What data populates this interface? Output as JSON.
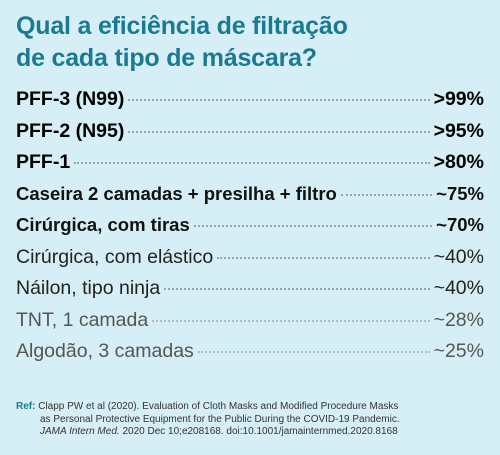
{
  "title": {
    "line1": "Qual a eficiência de filtração",
    "line2": "de cada tipo de máscara?"
  },
  "rows": [
    {
      "label": "PFF-3 (N99)",
      "value": ">99%"
    },
    {
      "label": "PFF-2 (N95)",
      "value": ">95%"
    },
    {
      "label": "PFF-1",
      "value": ">80%"
    },
    {
      "label": "Caseira 2 camadas + presilha + filtro",
      "value": "~75%"
    },
    {
      "label": "Cirúrgica, com tiras",
      "value": "~70%"
    },
    {
      "label": "Cirúrgica, com elástico",
      "value": "~40%"
    },
    {
      "label": "Náilon, tipo ninja",
      "value": "~40%"
    },
    {
      "label": "TNT, 1 camada",
      "value": "~28%"
    },
    {
      "label": "Algodão, 3 camadas",
      "value": "~25%"
    }
  ],
  "reference": {
    "label": "Ref:",
    "line1": "Clapp PW et al (2020). Evaluation of Cloth Masks and Modified Procedure Masks",
    "line2": "as Personal Protective Equipment for the Public During the COVID-19 Pandemic.",
    "journal": "JAMA Intern Med.",
    "line3_rest": " 2020 Dec 10;e208168. doi:10.1001/jamainternmed.2020.8168"
  },
  "colors": {
    "background": "#d6eef6",
    "title": "#1a7a92"
  }
}
